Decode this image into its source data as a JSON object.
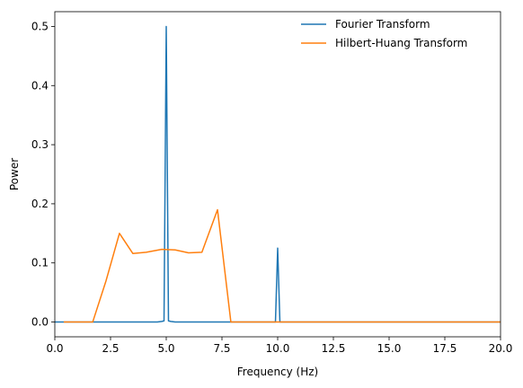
{
  "chart_data": {
    "type": "line",
    "title": "",
    "xlabel": "Frequency (Hz)",
    "ylabel": "Power",
    "xlim": [
      0,
      20
    ],
    "ylim": [
      -0.025,
      0.525
    ],
    "x_ticks": [
      0.0,
      2.5,
      5.0,
      7.5,
      10.0,
      12.5,
      15.0,
      17.5,
      20.0
    ],
    "x_tick_labels": [
      "0.0",
      "2.5",
      "5.0",
      "7.5",
      "10.0",
      "12.5",
      "15.0",
      "17.5",
      "20.0"
    ],
    "y_ticks": [
      0.0,
      0.1,
      0.2,
      0.3,
      0.4,
      0.5
    ],
    "y_tick_labels": [
      "0.0",
      "0.1",
      "0.2",
      "0.3",
      "0.4",
      "0.5"
    ],
    "grid": false,
    "legend_position": "top-right",
    "series": [
      {
        "name": "Fourier Transform",
        "color": "#1f77b4",
        "x": [
          0,
          4.6,
          4.8,
          4.9,
          5.0,
          5.1,
          5.2,
          5.4,
          9.8,
          9.9,
          10.0,
          10.1,
          10.2,
          20
        ],
        "y": [
          0.0,
          0.0,
          0.001,
          0.002,
          0.5,
          0.002,
          0.001,
          0.0,
          0.0,
          0.0,
          0.125,
          0.0,
          0.0,
          0.0
        ]
      },
      {
        "name": "Hilbert-Huang Transform",
        "color": "#ff7f0e",
        "x": [
          0.4,
          1.7,
          2.3,
          2.9,
          3.5,
          4.1,
          4.8,
          5.4,
          6.0,
          6.6,
          7.3,
          7.9,
          20
        ],
        "y": [
          0.0,
          0.0,
          0.07,
          0.15,
          0.116,
          0.118,
          0.123,
          0.122,
          0.117,
          0.118,
          0.19,
          0.0,
          0.0
        ]
      }
    ]
  }
}
